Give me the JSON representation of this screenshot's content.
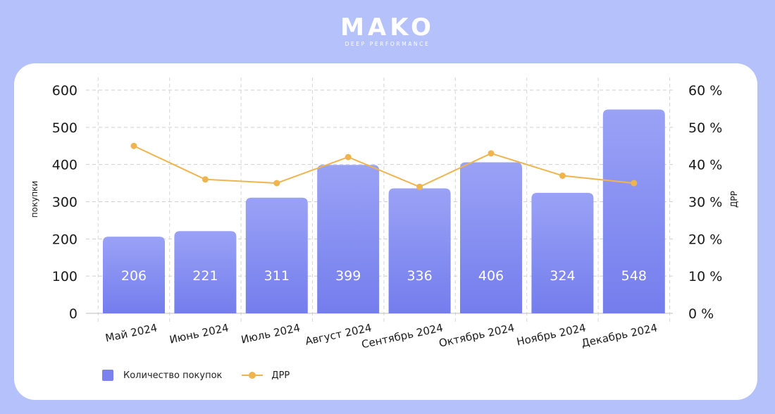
{
  "logo": {
    "name": "MAKO",
    "tagline": "DEEP PERFORMANCE"
  },
  "chart_data": {
    "type": "bar",
    "categories": [
      "Май 2024",
      "Июнь 2024",
      "Июль 2024",
      "Август 2024",
      "Сентябрь 2024",
      "Октябрь 2024",
      "Ноябрь 2024",
      "Декабрь 2024"
    ],
    "series": [
      {
        "name": "Количество покупок",
        "type": "bar",
        "axis": "left",
        "values": [
          206,
          221,
          311,
          399,
          336,
          406,
          324,
          548
        ]
      },
      {
        "name": "ДРР",
        "type": "line",
        "axis": "right",
        "values": [
          45,
          36,
          35,
          42,
          34,
          43,
          37,
          35
        ]
      }
    ],
    "ylabel": "покупки",
    "y2label": "ДРР",
    "ylim": [
      0,
      600
    ],
    "y2lim": [
      0,
      60
    ],
    "yticks": [
      "0",
      "100",
      "200",
      "300",
      "400",
      "500",
      "600"
    ],
    "y2ticks": [
      "0 %",
      "10 %",
      "20 %",
      "30 %",
      "40 %",
      "50 %",
      "60 %"
    ],
    "grid": true,
    "legend": "bottom-left",
    "colors": {
      "bar_top": "#9aa2f6",
      "bar_bottom": "#747ded",
      "line": "#f0b44e",
      "grid": "#cfcfcf"
    }
  }
}
